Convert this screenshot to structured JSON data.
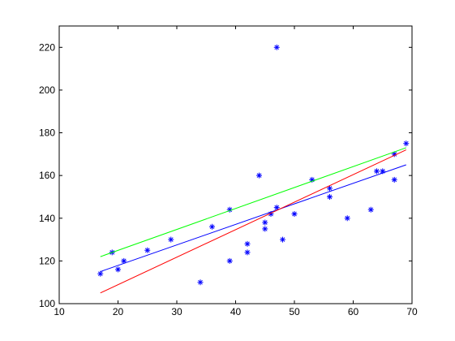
{
  "chart_data": {
    "type": "scatter",
    "xlim": [
      10,
      70
    ],
    "xticks": [
      10,
      20,
      30,
      40,
      50,
      60,
      70
    ],
    "ylim": [
      100,
      230
    ],
    "yticks": [
      100,
      120,
      140,
      160,
      180,
      200,
      220
    ],
    "series": [
      {
        "style": "markers",
        "color": "#0000ff",
        "x": [
          17,
          19,
          20,
          21,
          25,
          29,
          34,
          36,
          39,
          39,
          42,
          42,
          44,
          45,
          45,
          46,
          47,
          47,
          48,
          50,
          53,
          56,
          56,
          59,
          63,
          64,
          65,
          67,
          67,
          69
        ],
        "values": [
          114,
          124,
          116,
          120,
          125,
          130,
          110,
          136,
          144,
          120,
          128,
          124,
          160,
          138,
          135,
          142,
          220,
          145,
          130,
          142,
          158,
          154,
          150,
          140,
          144,
          162,
          162,
          158,
          170,
          175
        ]
      },
      {
        "style": "line",
        "color": "#00ff00",
        "x": [
          17,
          69
        ],
        "values": [
          122,
          173
        ]
      },
      {
        "style": "line",
        "color": "#0000ff",
        "x": [
          17,
          69
        ],
        "values": [
          115,
          165
        ]
      },
      {
        "style": "line",
        "color": "#ff0000",
        "x": [
          17,
          69
        ],
        "values": [
          105,
          172
        ]
      }
    ]
  }
}
